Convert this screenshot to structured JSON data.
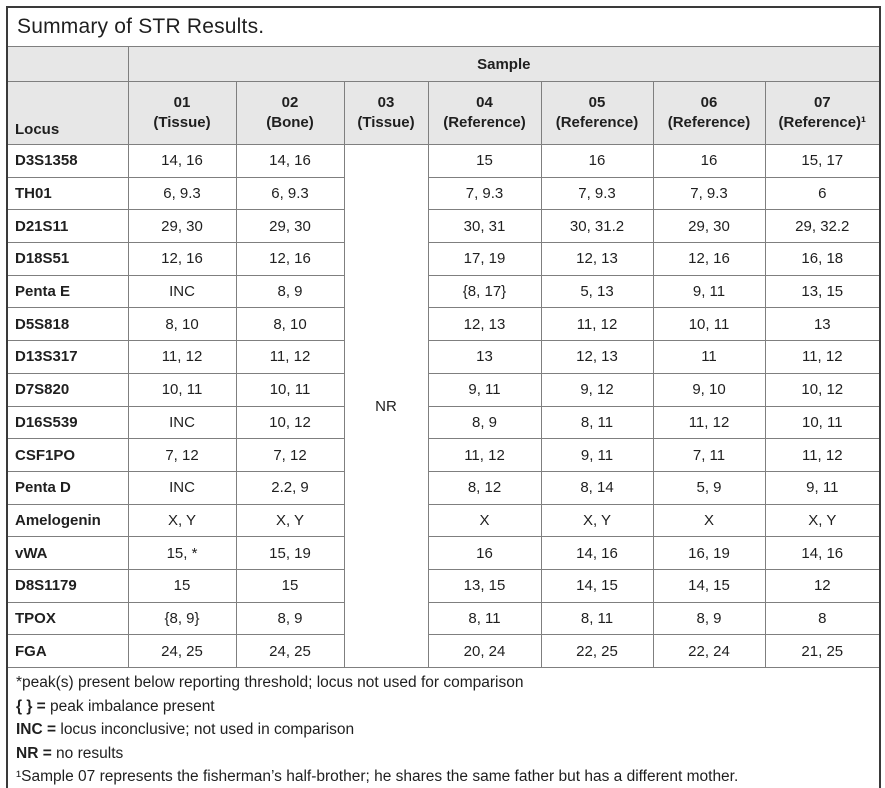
{
  "title": "Summary of STR Results.",
  "colors": {
    "header_bg": "#e7e7e7",
    "outer_border": "#3a3a3a",
    "inner_border": "#7f7f7f",
    "text": "#1f1f1f"
  },
  "table": {
    "sample_group_label": "Sample",
    "locus_header": "Locus",
    "sample_headers": [
      {
        "num": "01",
        "type": "(Tissue)"
      },
      {
        "num": "02",
        "type": "(Bone)"
      },
      {
        "num": "03",
        "type": "(Tissue)"
      },
      {
        "num": "04",
        "type": "(Reference)"
      },
      {
        "num": "05",
        "type": "(Reference)"
      },
      {
        "num": "06",
        "type": "(Reference)"
      },
      {
        "num": "07",
        "type": "(Reference)¹"
      }
    ],
    "nr_label": "NR",
    "rows": [
      {
        "locus": "D3S1358",
        "values": [
          "14, 16",
          "14, 16",
          "15",
          "16",
          "16",
          "15, 17"
        ]
      },
      {
        "locus": "TH01",
        "values": [
          "6, 9.3",
          "6, 9.3",
          "7, 9.3",
          "7, 9.3",
          "7, 9.3",
          "6"
        ]
      },
      {
        "locus": "D21S11",
        "values": [
          "29, 30",
          "29, 30",
          "30, 31",
          "30, 31.2",
          "29, 30",
          "29, 32.2"
        ]
      },
      {
        "locus": "D18S51",
        "values": [
          "12, 16",
          "12, 16",
          "17, 19",
          "12, 13",
          "12, 16",
          "16, 18"
        ]
      },
      {
        "locus": "Penta E",
        "values": [
          "INC",
          "8, 9",
          "{8, 17}",
          "5, 13",
          "9, 11",
          "13, 15"
        ]
      },
      {
        "locus": "D5S818",
        "values": [
          "8, 10",
          "8, 10",
          "12, 13",
          "11, 12",
          "10, 11",
          "13"
        ]
      },
      {
        "locus": "D13S317",
        "values": [
          "11, 12",
          "11, 12",
          "13",
          "12, 13",
          "11",
          "11, 12"
        ]
      },
      {
        "locus": "D7S820",
        "values": [
          "10, 11",
          "10, 11",
          "9, 11",
          "9, 12",
          "9, 10",
          "10, 12"
        ]
      },
      {
        "locus": "D16S539",
        "values": [
          "INC",
          "10, 12",
          "8, 9",
          "8, 11",
          "11, 12",
          "10, 11"
        ]
      },
      {
        "locus": "CSF1PO",
        "values": [
          "7, 12",
          "7, 12",
          "11, 12",
          "9, 11",
          "7, 11",
          "11, 12"
        ]
      },
      {
        "locus": "Penta D",
        "values": [
          "INC",
          "2.2, 9",
          "8, 12",
          "8, 14",
          "5, 9",
          "9, 11"
        ]
      },
      {
        "locus": "Amelogenin",
        "values": [
          "X, Y",
          "X, Y",
          "X",
          "X, Y",
          "X",
          "X, Y"
        ]
      },
      {
        "locus": "vWA",
        "values": [
          "15, *",
          "15, 19",
          "16",
          "14, 16",
          "16, 19",
          "14, 16"
        ]
      },
      {
        "locus": "D8S1179",
        "values": [
          "15",
          "15",
          "13, 15",
          "14, 15",
          "14, 15",
          "12"
        ]
      },
      {
        "locus": "TPOX",
        "values": [
          "{8, 9}",
          "8, 9",
          "8, 11",
          "8, 11",
          "8, 9",
          "8"
        ]
      },
      {
        "locus": "FGA",
        "values": [
          "24, 25",
          "24, 25",
          "20, 24",
          "22, 25",
          "22, 24",
          "21, 25"
        ]
      }
    ]
  },
  "footnotes": [
    {
      "bold": "",
      "text": "*peak(s) present below reporting threshold; locus not used for comparison"
    },
    {
      "bold": "{ } =",
      "text": " peak imbalance present"
    },
    {
      "bold": "INC =",
      "text": " locus inconclusive; not used in comparison"
    },
    {
      "bold": "NR =",
      "text": " no results"
    },
    {
      "bold": "",
      "text": "¹Sample 07 represents the fisherman’s half-brother; he shares the same father but has a different mother."
    }
  ]
}
